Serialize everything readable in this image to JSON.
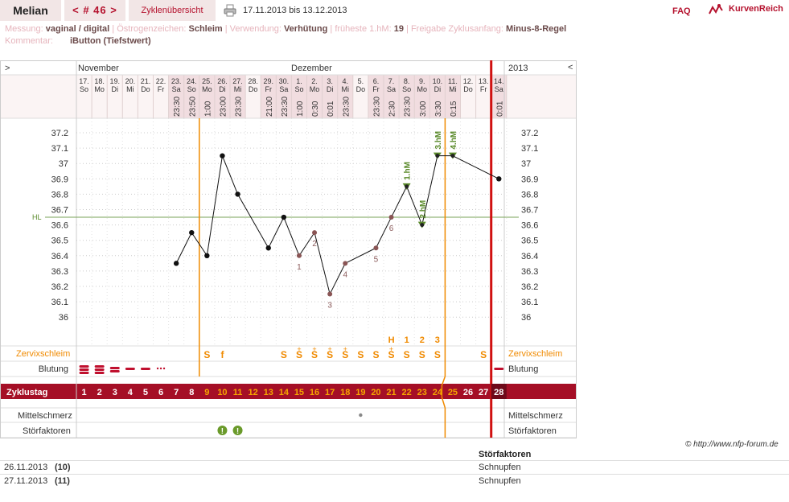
{
  "header": {
    "user_name": "Melian",
    "cycle_nav": "< # 46 >",
    "cycle_overview": "Zyklenübersicht",
    "date_range": "17.11.2013 bis 13.12.2013",
    "faq": "FAQ",
    "logo_text": "KurvenReich",
    "printer_icon": "printer-icon"
  },
  "meta": {
    "messung_label": "Messung:",
    "messung_value": "vaginal / digital",
    "oestrogen_label": "Östrogenzeichen:",
    "oestrogen_value": "Schleim",
    "verwendung_label": "Verwendung:",
    "verwendung_value": "Verhütung",
    "fhm_label": "früheste 1.hM:",
    "fhm_value": "19",
    "freigabe_label": "Freigabe Zyklusanfang:",
    "freigabe_value": "Minus-8-Regel",
    "kommentar_label": "Kommentar:",
    "kommentar_value": "iButton (Tiefstwert)"
  },
  "chart": {
    "nav_left": ">",
    "nav_right": "<",
    "month_november": "November",
    "month_dezember": "Dezember",
    "year": "2013",
    "hl_label": "HL",
    "row_zervix": "Zervixschleim",
    "row_blutung": "Blutung",
    "row_zyklustag": "Zyklustag",
    "row_mittelschmerz": "Mittelschmerz",
    "row_stoerfaktoren": "Störfaktoren",
    "y_ticks": [
      "37.2",
      "37.1",
      "37",
      "36.9",
      "36.8",
      "36.7",
      "36.6",
      "36.5",
      "36.4",
      "36.3",
      "36.2",
      "36.1",
      "36"
    ],
    "days": [
      {
        "date": "17.",
        "wd": "So",
        "time": "",
        "cd": "1",
        "temp": null,
        "mucus": "",
        "bleed": "heavy",
        "hl": ""
      },
      {
        "date": "18.",
        "wd": "Mo",
        "time": "",
        "cd": "2",
        "temp": null,
        "mucus": "",
        "bleed": "heavy",
        "hl": ""
      },
      {
        "date": "19.",
        "wd": "Di",
        "time": "",
        "cd": "3",
        "temp": null,
        "mucus": "",
        "bleed": "medium",
        "hl": ""
      },
      {
        "date": "20.",
        "wd": "Mi",
        "time": "",
        "cd": "4",
        "temp": null,
        "mucus": "",
        "bleed": "light",
        "hl": ""
      },
      {
        "date": "21.",
        "wd": "Do",
        "time": "",
        "cd": "5",
        "temp": null,
        "mucus": "",
        "bleed": "light",
        "hl": ""
      },
      {
        "date": "22.",
        "wd": "Fr",
        "time": "",
        "cd": "6",
        "temp": null,
        "mucus": "",
        "bleed": "spotting",
        "hl": ""
      },
      {
        "date": "23.",
        "wd": "Sa",
        "time": "23:30",
        "cd": "7",
        "temp": 36.35,
        "mucus": "",
        "bleed": "",
        "hl": ""
      },
      {
        "date": "24.",
        "wd": "So",
        "time": "23:50",
        "cd": "8",
        "temp": 36.55,
        "mucus": "",
        "bleed": "",
        "hl": ""
      },
      {
        "date": "25.",
        "wd": "Mo",
        "time": "1:00",
        "cd": "9",
        "temp": 36.4,
        "mucus": "S",
        "bleed": "",
        "hl": ""
      },
      {
        "date": "26.",
        "wd": "Di",
        "time": "23:00",
        "cd": "10",
        "temp": 37.05,
        "mucus": "f",
        "bleed": "",
        "hl": ""
      },
      {
        "date": "27.",
        "wd": "Mi",
        "time": "23:30",
        "cd": "11",
        "temp": 36.8,
        "mucus": "",
        "bleed": "",
        "hl": ""
      },
      {
        "date": "28.",
        "wd": "Do",
        "time": "",
        "cd": "12",
        "temp": null,
        "mucus": "",
        "bleed": "",
        "hl": ""
      },
      {
        "date": "29.",
        "wd": "Fr",
        "time": "21:00",
        "cd": "13",
        "temp": 36.45,
        "mucus": "",
        "bleed": "",
        "hl": ""
      },
      {
        "date": "30.",
        "wd": "Sa",
        "time": "23:30",
        "cd": "14",
        "temp": 36.65,
        "mucus": "S",
        "bleed": "",
        "hl": ""
      },
      {
        "date": "1.",
        "wd": "So",
        "time": "1:00",
        "cd": "15",
        "temp": 36.4,
        "mucus": "S+",
        "bleed": "",
        "hl": "1"
      },
      {
        "date": "2.",
        "wd": "Mo",
        "time": "0:30",
        "cd": "16",
        "temp": 36.55,
        "mucus": "S+",
        "bleed": "",
        "hl": "2"
      },
      {
        "date": "3.",
        "wd": "Di",
        "time": "0:01",
        "cd": "17",
        "temp": 36.15,
        "mucus": "S+",
        "bleed": "",
        "hl": "3"
      },
      {
        "date": "4.",
        "wd": "Mi",
        "time": "23:30",
        "cd": "18",
        "temp": 36.35,
        "mucus": "S+",
        "bleed": "",
        "hl": "4"
      },
      {
        "date": "5.",
        "wd": "Do",
        "time": "",
        "cd": "19",
        "temp": null,
        "mucus": "S",
        "bleed": "",
        "hl": ""
      },
      {
        "date": "6.",
        "wd": "Fr",
        "time": "23:30",
        "cd": "20",
        "temp": 36.45,
        "mucus": "S",
        "bleed": "",
        "hl": "5"
      },
      {
        "date": "7.",
        "wd": "Sa",
        "time": "2:30",
        "cd": "21",
        "temp": 36.65,
        "mucus": "S+",
        "bleed": "",
        "hl": "6"
      },
      {
        "date": "8.",
        "wd": "So",
        "time": "23:30",
        "cd": "22",
        "temp": 36.85,
        "mucus": "S",
        "bleed": "",
        "hl": ""
      },
      {
        "date": "9.",
        "wd": "Mo",
        "time": "3:00",
        "cd": "23",
        "temp": 36.6,
        "mucus": "S",
        "bleed": "",
        "hl": ""
      },
      {
        "date": "10.",
        "wd": "Di",
        "time": "3:30",
        "cd": "24",
        "temp": 37.05,
        "mucus": "S",
        "bleed": "",
        "hl": ""
      },
      {
        "date": "11.",
        "wd": "Mi",
        "time": "0:15",
        "cd": "25",
        "temp": 37.05,
        "mucus": "",
        "bleed": "",
        "hl": ""
      },
      {
        "date": "12.",
        "wd": "Do",
        "time": "",
        "cd": "26",
        "temp": null,
        "mucus": "",
        "bleed": "",
        "hl": ""
      },
      {
        "date": "13.",
        "wd": "Fr",
        "time": "",
        "cd": "27",
        "temp": null,
        "mucus": "S",
        "bleed": "",
        "hl": ""
      },
      {
        "date": "14.",
        "wd": "Sa",
        "time": "0:01",
        "cd": "28",
        "temp": 36.9,
        "mucus": "",
        "bleed": "light",
        "hl": ""
      }
    ],
    "peak_letters": {
      "21": "H",
      "22": "1",
      "23": "2",
      "24": "3"
    },
    "hm_labels": {
      "22": "1.hM",
      "23": "2.hM",
      "24": "3.hM",
      "25": "4.hM"
    },
    "hl_value": 36.65,
    "mittelschmerz_day": 19,
    "stoerfaktor_days": [
      10,
      11
    ],
    "colors": {
      "accent": "#b5122e",
      "orange": "#f08a00",
      "green": "#5a8a2a",
      "pink": "#f6e8ea"
    }
  },
  "footer": {
    "copyright": "© http://www.nfp-forum.de",
    "stoer_title": "Störfaktoren",
    "entries": [
      {
        "date": "26.11.2013",
        "num": "(10)",
        "factor": "Schnupfen"
      },
      {
        "date": "27.11.2013",
        "num": "(11)",
        "factor": "Schnupfen"
      }
    ]
  }
}
